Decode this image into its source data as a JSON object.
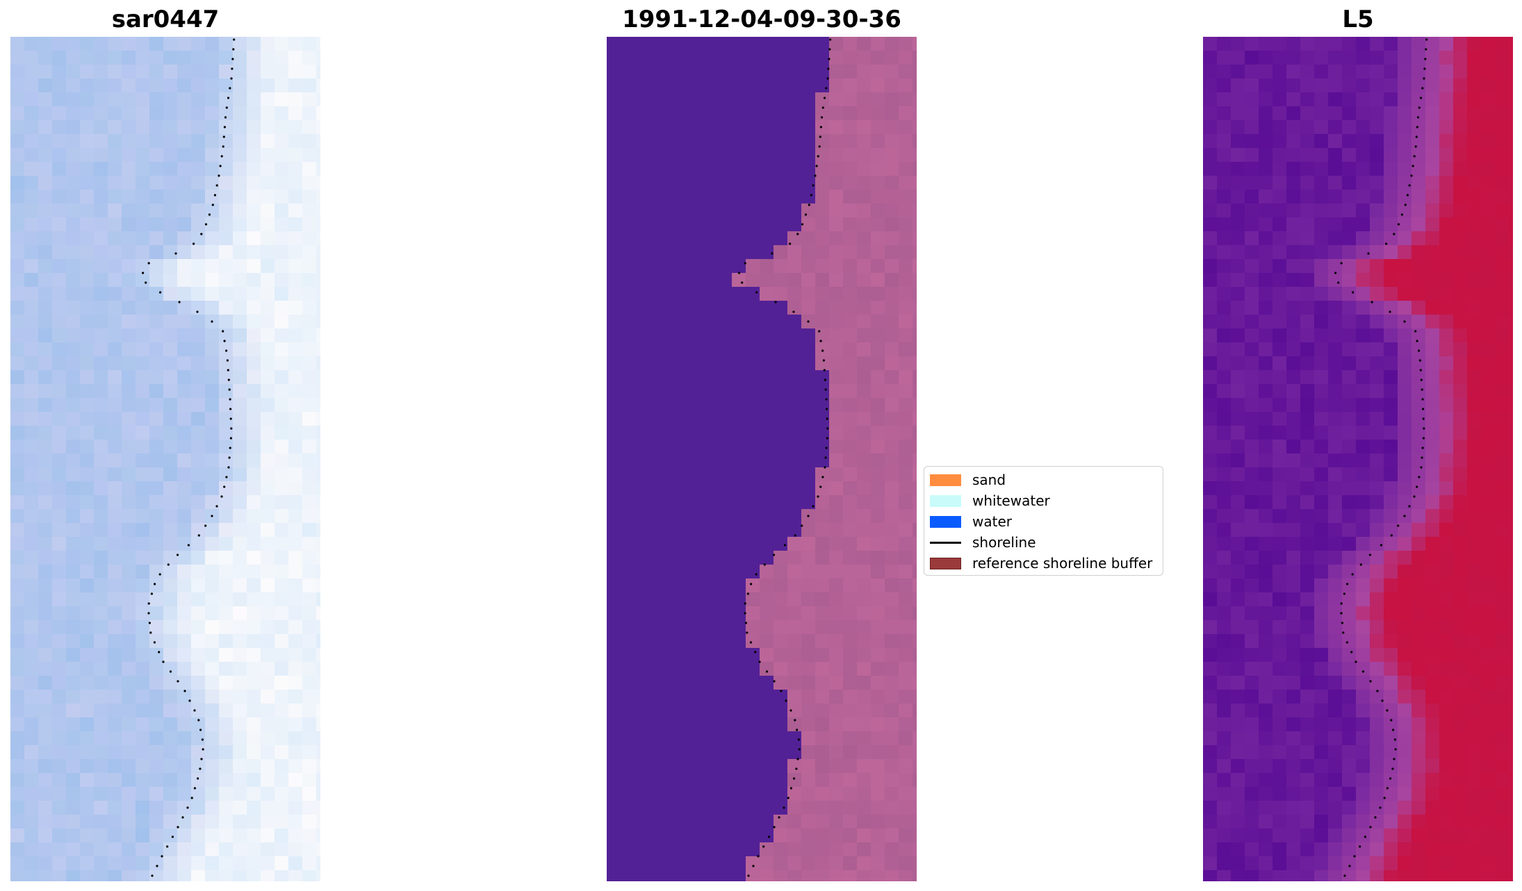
{
  "panels": [
    {
      "title": "sar0447"
    },
    {
      "title": "1991-12-04-09-30-36"
    },
    {
      "title": "L5"
    }
  ],
  "legend": {
    "items": [
      {
        "label": "sand",
        "kind": "patch",
        "color": "#ff8c3f"
      },
      {
        "label": "whitewater",
        "kind": "patch",
        "color": "#c9fbfb"
      },
      {
        "label": "water",
        "kind": "patch",
        "color": "#0a5bff"
      },
      {
        "label": "shoreline",
        "kind": "line",
        "color": "#000000"
      },
      {
        "label": "reference shoreline buffer",
        "kind": "patch",
        "color": "#9a3a3a"
      }
    ]
  }
}
